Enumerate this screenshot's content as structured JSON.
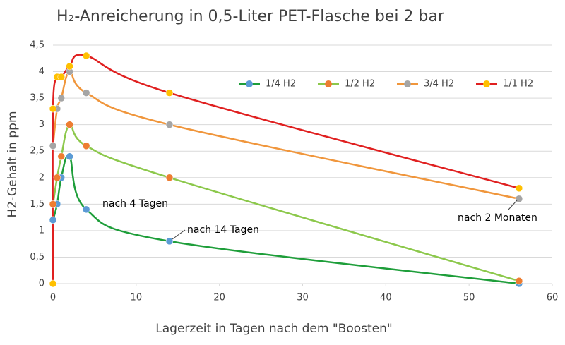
{
  "chart_data": {
    "type": "scatter_smooth",
    "title": "H₂-Anreicherung in 0,5-Liter PET-Flasche bei 2 bar",
    "x_label": "Lagerzeit in Tagen nach dem \"Boosten\"",
    "y_label": "H2-Gehalt in ppm",
    "xlim": [
      0,
      60
    ],
    "xticks": [
      0,
      10,
      20,
      30,
      40,
      50,
      60
    ],
    "ylim": [
      0,
      4.5
    ],
    "yticks": [
      0,
      {
        "value": 0.5,
        "label": "0,5"
      },
      1,
      {
        "value": 1.5,
        "label": "1,5"
      },
      2,
      {
        "value": 2.5,
        "label": "2,5"
      },
      3,
      {
        "value": 3.5,
        "label": "3,5"
      },
      4,
      {
        "value": 4.5,
        "label": "4,5"
      }
    ],
    "grid": true,
    "legend": "upper right",
    "series": [
      {
        "name": "1/4 H2",
        "color": "#1e9e3a",
        "marker_color": "#5b9bd5",
        "x": [
          0,
          0.5,
          1,
          2,
          4,
          14,
          56
        ],
        "values": [
          1.2,
          1.5,
          2,
          2.4,
          1.4,
          0.8,
          0
        ]
      },
      {
        "name": "1/2 H2",
        "color": "#8cc84b",
        "marker_color": "#ed7d31",
        "x": [
          0,
          0.5,
          1,
          2,
          4,
          14,
          56
        ],
        "values": [
          1.5,
          2,
          2.4,
          3,
          2.6,
          2,
          0.05
        ]
      },
      {
        "name": "3/4 H2",
        "color": "#f0963c",
        "marker_color": "#a5a5a5",
        "x": [
          0,
          0.5,
          1,
          2,
          4,
          14,
          56
        ],
        "values": [
          2.6,
          3.3,
          3.5,
          4,
          3.6,
          3,
          1.6
        ]
      },
      {
        "name": "1/1 H2",
        "color": "#e02020",
        "marker_color": "#ffc000",
        "x": [
          0,
          0,
          0.5,
          1,
          2,
          4,
          14,
          56
        ],
        "values": [
          0,
          3.3,
          3.9,
          3.9,
          4.1,
          4.3,
          3.6,
          1.8
        ]
      }
    ],
    "annotations": [
      "nach 4 Tagen",
      "nach 14 Tagen",
      "nach 2 Monaten"
    ]
  }
}
